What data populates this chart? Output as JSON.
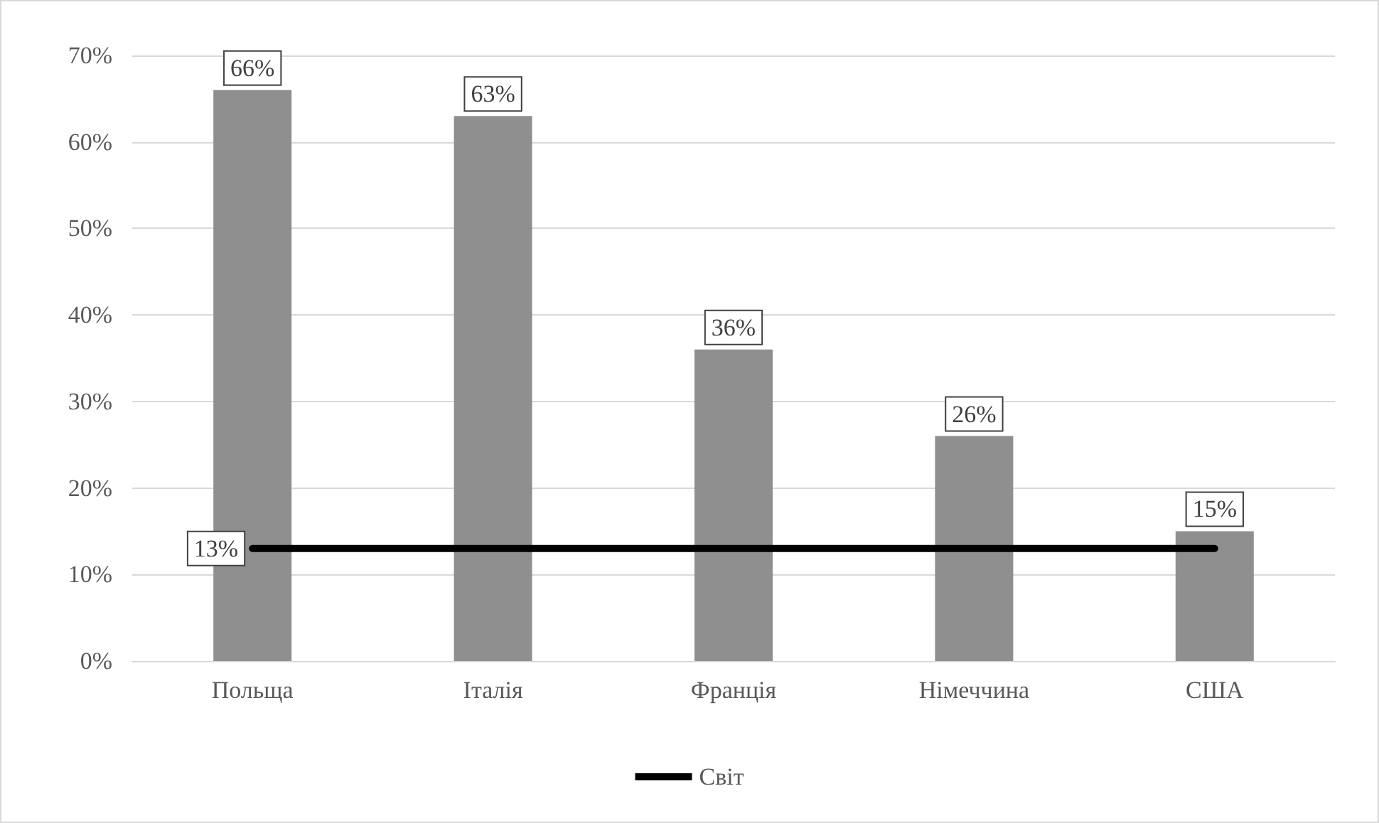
{
  "chart_data": {
    "type": "bar",
    "categories": [
      "Польща",
      "Італія",
      "Франція",
      "Німеччина",
      "США"
    ],
    "series": [
      {
        "color": "#8f8f8f",
        "values": [
          66,
          63,
          36,
          26,
          15
        ],
        "value_labels": [
          "66%",
          "63%",
          "36%",
          "26%",
          "15%"
        ]
      },
      {
        "type": "line",
        "name": "Світ",
        "color": "#000000",
        "values": [
          13,
          13,
          13,
          13,
          13
        ],
        "value_labels": [
          "13%",
          null,
          null,
          null,
          null
        ]
      }
    ],
    "ylim": [
      0,
      70
    ],
    "yticks": [
      {
        "value": 0,
        "label": "0%"
      },
      {
        "value": 10,
        "label": "10%"
      },
      {
        "value": 20,
        "label": "20%"
      },
      {
        "value": 30,
        "label": "30%"
      },
      {
        "value": 40,
        "label": "40%"
      },
      {
        "value": 50,
        "label": "50%"
      },
      {
        "value": 60,
        "label": "60%"
      },
      {
        "value": 70,
        "label": "70%"
      }
    ],
    "grid": "y",
    "legend": "bottom",
    "marker": "none",
    "line_style": "solid"
  }
}
